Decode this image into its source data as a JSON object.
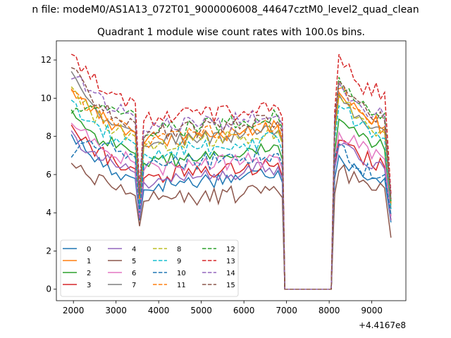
{
  "figure": {
    "suptitle": "n file: modeM0/AS1A13_072T01_9000006008_44647cztM0_level2_quad_clean",
    "title": "Quadrant 1 module wise count rates with 100.0s bins.",
    "offset_label": "+4.4167e8"
  },
  "chart_data": {
    "type": "line",
    "title": "Quadrant 1 module wise count rates with 100.0s bins.",
    "xlabel": "",
    "ylabel": "",
    "x_offset": 441670000,
    "xlim": [
      1600,
      9800
    ],
    "ylim": [
      -0.6,
      13
    ],
    "xticks": [
      2000,
      3000,
      4000,
      5000,
      6000,
      7000,
      8000,
      9000
    ],
    "yticks": [
      0,
      2,
      4,
      6,
      8,
      10,
      12
    ],
    "grid": false,
    "legend_position": "lower-left",
    "legend_columns": 4,
    "anchors_x": [
      1950,
      2400,
      3000,
      3450,
      3550,
      3650,
      4000,
      5000,
      6000,
      6800,
      6900,
      6960,
      8050,
      8130,
      8230,
      8700,
      9300,
      9450
    ],
    "series": [
      {
        "name": "0",
        "color": "#1f77b4",
        "dash": "solid",
        "values": [
          8.1,
          7.0,
          6.1,
          5.8,
          3.6,
          5.2,
          5.5,
          5.7,
          5.9,
          6.2,
          5.6,
          0,
          0,
          5.8,
          7.0,
          6.2,
          5.8,
          3.5
        ]
      },
      {
        "name": "1",
        "color": "#ff7f0e",
        "dash": "solid",
        "values": [
          10.5,
          9.3,
          8.6,
          8.2,
          4.6,
          7.6,
          7.9,
          8.0,
          8.3,
          8.5,
          7.8,
          0,
          0,
          8.3,
          10.3,
          9.3,
          8.4,
          4.4
        ]
      },
      {
        "name": "2",
        "color": "#2ca02c",
        "dash": "solid",
        "values": [
          9.4,
          8.3,
          7.4,
          7.1,
          4.1,
          6.6,
          6.8,
          6.9,
          7.1,
          7.5,
          6.8,
          0,
          0,
          7.2,
          8.9,
          8.0,
          7.3,
          3.8
        ]
      },
      {
        "name": "3",
        "color": "#d62728",
        "dash": "solid",
        "values": [
          8.6,
          7.5,
          6.6,
          6.3,
          3.8,
          5.8,
          6.0,
          6.1,
          6.3,
          6.6,
          5.9,
          0,
          0,
          6.5,
          7.8,
          7.0,
          6.4,
          3.6
        ]
      },
      {
        "name": "4",
        "color": "#9467bd",
        "dash": "solid",
        "values": [
          8.3,
          7.2,
          6.4,
          6.1,
          3.7,
          5.6,
          5.8,
          5.9,
          6.1,
          6.4,
          5.8,
          0,
          0,
          6.3,
          7.5,
          6.8,
          6.3,
          3.6
        ]
      },
      {
        "name": "5",
        "color": "#8c564b",
        "dash": "solid",
        "values": [
          6.6,
          5.8,
          5.2,
          4.9,
          3.3,
          4.6,
          4.7,
          4.8,
          5.0,
          5.1,
          4.8,
          0,
          0,
          5.0,
          6.2,
          5.6,
          5.3,
          2.7
        ]
      },
      {
        "name": "6",
        "color": "#e377c2",
        "dash": "solid",
        "values": [
          8.7,
          7.7,
          6.9,
          6.6,
          3.9,
          6.2,
          6.4,
          6.5,
          6.7,
          6.9,
          6.3,
          0,
          0,
          6.8,
          8.2,
          7.4,
          6.8,
          3.8
        ]
      },
      {
        "name": "7",
        "color": "#7f7f7f",
        "dash": "solid",
        "values": [
          11.4,
          9.8,
          8.6,
          8.2,
          4.6,
          7.5,
          7.7,
          7.9,
          8.1,
          8.3,
          7.7,
          0,
          0,
          8.1,
          10.2,
          9.1,
          8.3,
          4.2
        ]
      },
      {
        "name": "8",
        "color": "#bcbd22",
        "dash": "dashed",
        "values": [
          10.6,
          9.3,
          8.3,
          8.0,
          4.5,
          7.4,
          7.6,
          7.8,
          8.0,
          8.3,
          7.6,
          0,
          0,
          8.2,
          10.1,
          9.0,
          8.2,
          4.4
        ]
      },
      {
        "name": "9",
        "color": "#17becf",
        "dash": "dashed",
        "values": [
          9.9,
          8.8,
          7.9,
          7.6,
          4.4,
          7.1,
          7.3,
          7.4,
          7.6,
          7.9,
          7.2,
          0,
          0,
          7.8,
          9.6,
          8.6,
          7.9,
          4.2
        ]
      },
      {
        "name": "10",
        "color": "#1f77b4",
        "dash": "dashed",
        "values": [
          6.9,
          7.8,
          7.2,
          6.9,
          4.0,
          6.4,
          6.6,
          6.7,
          6.9,
          7.1,
          6.5,
          0,
          0,
          6.9,
          7.6,
          6.3,
          6.0,
          3.9
        ]
      },
      {
        "name": "11",
        "color": "#ff7f0e",
        "dash": "dashed",
        "values": [
          10.4,
          9.5,
          8.5,
          8.2,
          4.7,
          7.7,
          8.0,
          8.1,
          8.3,
          8.6,
          7.9,
          0,
          0,
          8.4,
          10.5,
          9.4,
          8.5,
          4.5
        ]
      },
      {
        "name": "12",
        "color": "#2ca02c",
        "dash": "dashed",
        "values": [
          9.2,
          9.6,
          9.4,
          9.2,
          5.0,
          8.0,
          8.3,
          8.5,
          8.8,
          9.0,
          8.4,
          0,
          0,
          8.8,
          11.1,
          9.7,
          9.2,
          4.6
        ]
      },
      {
        "name": "13",
        "color": "#d62728",
        "dash": "dashed",
        "values": [
          12.3,
          11.0,
          10.2,
          9.8,
          5.3,
          8.8,
          9.0,
          9.1,
          9.3,
          9.5,
          9.0,
          0,
          0,
          9.3,
          12.3,
          10.7,
          10.3,
          5.0
        ]
      },
      {
        "name": "14",
        "color": "#9467bd",
        "dash": "dashed",
        "values": [
          11.0,
          10.4,
          9.3,
          9.0,
          5.1,
          8.3,
          8.5,
          8.6,
          8.9,
          9.1,
          8.6,
          0,
          0,
          8.9,
          10.8,
          9.7,
          9.0,
          4.8
        ]
      },
      {
        "name": "15",
        "color": "#8c564b",
        "dash": "dashed",
        "values": [
          11.6,
          10.1,
          9.0,
          8.7,
          4.9,
          7.9,
          8.2,
          8.4,
          8.6,
          8.8,
          8.2,
          0,
          0,
          8.6,
          10.9,
          9.8,
          8.8,
          4.7
        ]
      }
    ]
  }
}
